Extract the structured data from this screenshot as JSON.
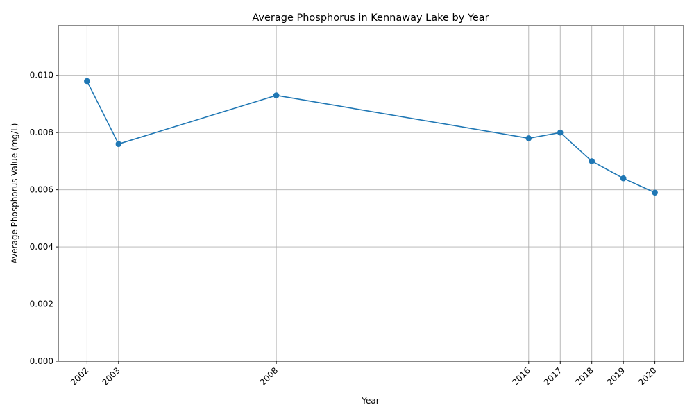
{
  "chart_data": {
    "type": "line",
    "title": "Average Phosphorus in Kennaway Lake by Year",
    "xlabel": "Year",
    "ylabel": "Average Phosphorus Value (mg/L)",
    "x": [
      2002,
      2003,
      2008,
      2016,
      2017,
      2018,
      2019,
      2020
    ],
    "series": [
      {
        "values": [
          0.0098,
          0.0076,
          0.0093,
          0.0078,
          0.008,
          0.007,
          0.0064,
          0.0059
        ],
        "color": "#1f77b4",
        "marker": "circle"
      }
    ],
    "xlim": [
      2001.09,
      2020.91
    ],
    "ylim": [
      0,
      0.01174
    ],
    "x_ticks": [
      "2002",
      "2003",
      "2008",
      "2016",
      "2017",
      "2018",
      "2019",
      "2020"
    ],
    "y_ticks": [
      "0.000",
      "0.002",
      "0.004",
      "0.006",
      "0.008",
      "0.010"
    ],
    "y_tick_values": [
      0,
      0.002,
      0.004,
      0.006,
      0.008,
      0.01
    ],
    "grid": true,
    "legend": "none"
  }
}
